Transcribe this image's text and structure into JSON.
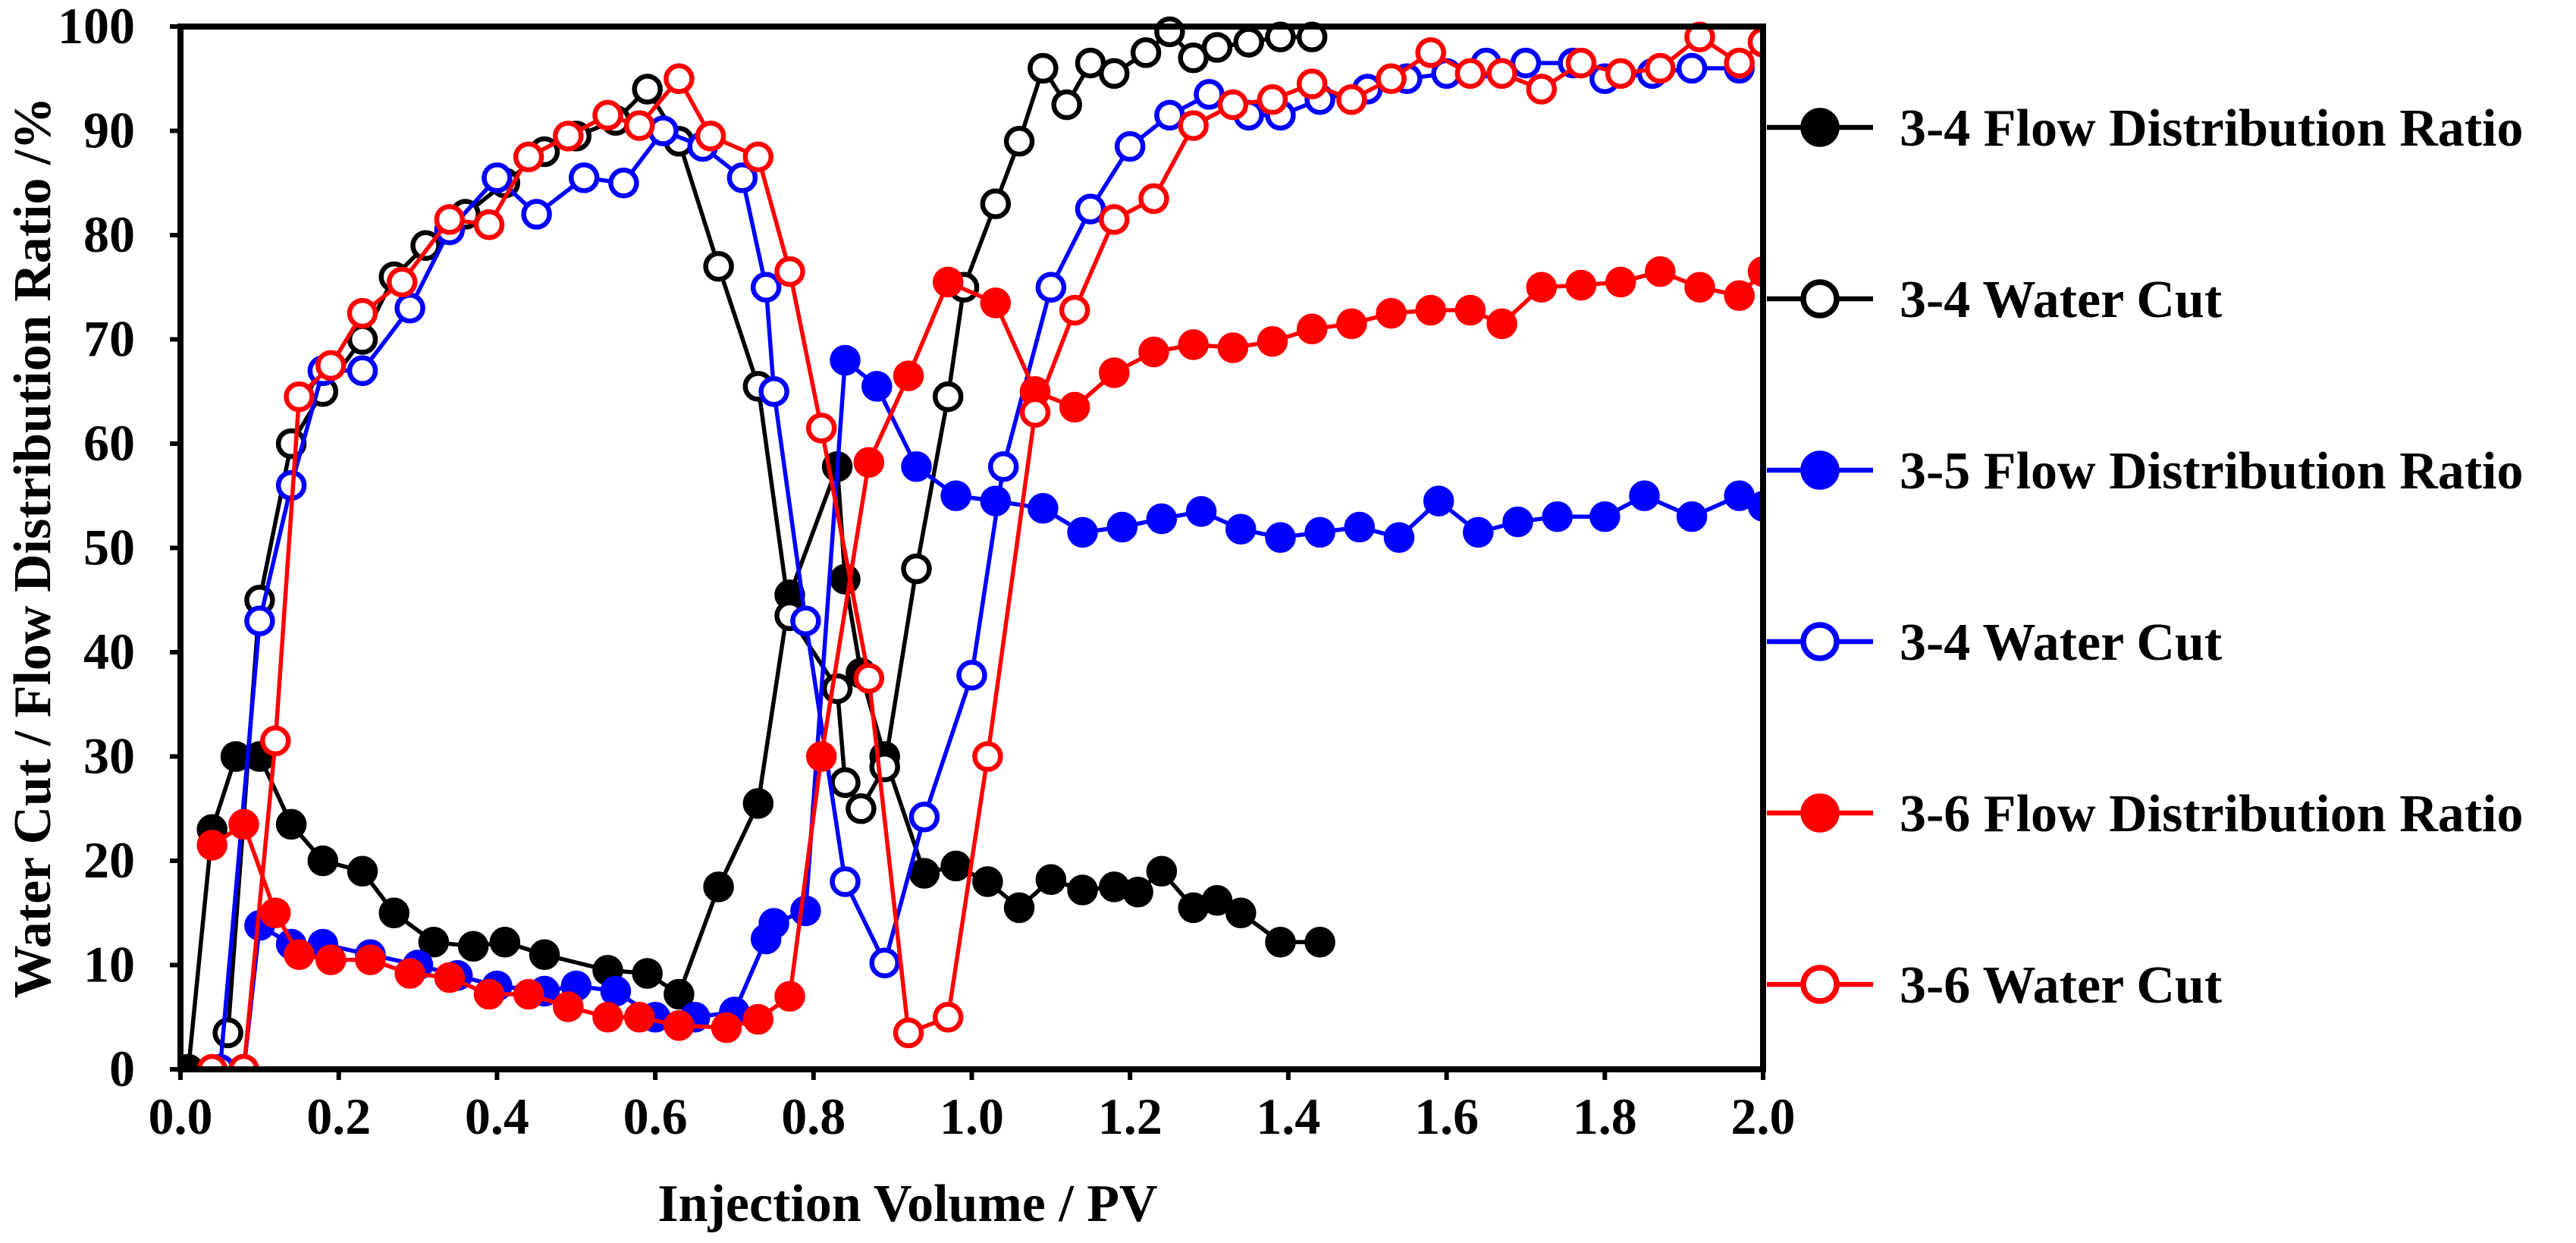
{
  "chart_data": {
    "type": "line",
    "title": "",
    "xlabel": "Injection Volume / PV",
    "ylabel": "Water Cut / Flow Distribution Ratio /%",
    "xlim": [
      0.0,
      2.0
    ],
    "ylim": [
      0,
      100
    ],
    "xticks": [
      "0.0",
      "0.2",
      "0.4",
      "0.6",
      "0.8",
      "1.0",
      "1.2",
      "1.4",
      "1.6",
      "1.8",
      "2.0"
    ],
    "yticks": [
      "0",
      "10",
      "20",
      "30",
      "40",
      "50",
      "60",
      "70",
      "80",
      "90",
      "100"
    ],
    "legend_position": "right",
    "series": [
      {
        "name": "3-4 Flow Distribution Ratio",
        "color": "#000000",
        "marker": "filled",
        "points": [
          [
            0.01,
            0
          ],
          [
            0.04,
            23
          ],
          [
            0.07,
            30
          ],
          [
            0.1,
            30
          ],
          [
            0.14,
            23.5
          ],
          [
            0.18,
            20
          ],
          [
            0.23,
            19
          ],
          [
            0.27,
            15
          ],
          [
            0.32,
            12.2
          ],
          [
            0.37,
            11.8
          ],
          [
            0.41,
            12.2
          ],
          [
            0.46,
            11
          ],
          [
            0.54,
            9.5
          ],
          [
            0.59,
            9.2
          ],
          [
            0.63,
            7.2
          ],
          [
            0.68,
            17.5
          ],
          [
            0.73,
            25.5
          ],
          [
            0.77,
            45.5
          ],
          [
            0.83,
            57.8
          ],
          [
            0.84,
            47
          ],
          [
            0.86,
            38
          ],
          [
            0.89,
            30
          ],
          [
            0.94,
            18.8
          ],
          [
            0.98,
            19.5
          ],
          [
            1.02,
            18
          ],
          [
            1.06,
            15.5
          ],
          [
            1.1,
            18.2
          ],
          [
            1.14,
            17.2
          ],
          [
            1.18,
            17.5
          ],
          [
            1.21,
            17
          ],
          [
            1.24,
            19
          ],
          [
            1.28,
            15.5
          ],
          [
            1.31,
            16.2
          ],
          [
            1.34,
            15
          ],
          [
            1.39,
            12.2
          ],
          [
            1.44,
            12.2
          ]
        ]
      },
      {
        "name": "3-4 Water Cut",
        "color": "#000000",
        "marker": "hollow",
        "points": [
          [
            0.06,
            3.5
          ],
          [
            0.1,
            45
          ],
          [
            0.14,
            60
          ],
          [
            0.18,
            65
          ],
          [
            0.23,
            70
          ],
          [
            0.27,
            76
          ],
          [
            0.31,
            79
          ],
          [
            0.36,
            82
          ],
          [
            0.41,
            85
          ],
          [
            0.46,
            88
          ],
          [
            0.5,
            89.5
          ],
          [
            0.55,
            91
          ],
          [
            0.59,
            94
          ],
          [
            0.63,
            89
          ],
          [
            0.68,
            77
          ],
          [
            0.73,
            65.5
          ],
          [
            0.77,
            43.5
          ],
          [
            0.83,
            36.5
          ],
          [
            0.84,
            27.5
          ],
          [
            0.86,
            25
          ],
          [
            0.89,
            29
          ],
          [
            0.93,
            48
          ],
          [
            0.97,
            64.5
          ],
          [
            0.99,
            75
          ],
          [
            1.03,
            83
          ],
          [
            1.06,
            89
          ],
          [
            1.09,
            96
          ],
          [
            1.12,
            92.5
          ],
          [
            1.15,
            96.5
          ],
          [
            1.18,
            95.5
          ],
          [
            1.22,
            97.5
          ],
          [
            1.25,
            99.5
          ],
          [
            1.28,
            97
          ],
          [
            1.31,
            98
          ],
          [
            1.35,
            98.5
          ],
          [
            1.39,
            99
          ],
          [
            1.43,
            99
          ]
        ]
      },
      {
        "name": "3-5 Flow Distribution Ratio",
        "color": "#0000ff",
        "marker": "filled",
        "points": [
          [
            0.05,
            0
          ],
          [
            0.08,
            0
          ],
          [
            0.1,
            13.8
          ],
          [
            0.14,
            12
          ],
          [
            0.18,
            12
          ],
          [
            0.24,
            11
          ],
          [
            0.3,
            10
          ],
          [
            0.35,
            9
          ],
          [
            0.4,
            8
          ],
          [
            0.46,
            7.5
          ],
          [
            0.5,
            8
          ],
          [
            0.55,
            7.5
          ],
          [
            0.6,
            5
          ],
          [
            0.65,
            5
          ],
          [
            0.7,
            5.5
          ],
          [
            0.74,
            12.5
          ],
          [
            0.75,
            14
          ],
          [
            0.79,
            15.2
          ],
          [
            0.84,
            68
          ],
          [
            0.88,
            65.5
          ],
          [
            0.93,
            57.8
          ],
          [
            0.98,
            55
          ],
          [
            1.03,
            54.5
          ],
          [
            1.09,
            53.8
          ],
          [
            1.14,
            51.5
          ],
          [
            1.19,
            52
          ],
          [
            1.24,
            52.8
          ],
          [
            1.29,
            53.5
          ],
          [
            1.34,
            51.8
          ],
          [
            1.39,
            51
          ],
          [
            1.44,
            51.5
          ],
          [
            1.49,
            52
          ],
          [
            1.54,
            51
          ],
          [
            1.59,
            54.5
          ],
          [
            1.64,
            51.5
          ],
          [
            1.69,
            52.5
          ],
          [
            1.74,
            53
          ],
          [
            1.8,
            53
          ],
          [
            1.85,
            55
          ],
          [
            1.91,
            53
          ],
          [
            1.97,
            55
          ],
          [
            2.0,
            54
          ]
        ]
      },
      {
        "name": "3-4 Water Cut",
        "color": "#0000ff",
        "marker": "hollow",
        "points": [
          [
            0.05,
            0
          ],
          [
            0.1,
            43
          ],
          [
            0.14,
            56
          ],
          [
            0.18,
            67
          ],
          [
            0.23,
            67
          ],
          [
            0.29,
            73
          ],
          [
            0.34,
            80.5
          ],
          [
            0.4,
            85.5
          ],
          [
            0.45,
            82
          ],
          [
            0.51,
            85.5
          ],
          [
            0.56,
            85
          ],
          [
            0.61,
            90
          ],
          [
            0.66,
            88.5
          ],
          [
            0.71,
            85.5
          ],
          [
            0.74,
            75
          ],
          [
            0.75,
            65
          ],
          [
            0.79,
            43
          ],
          [
            0.84,
            18
          ],
          [
            0.89,
            10.2
          ],
          [
            0.94,
            24.2
          ],
          [
            1.0,
            37.8
          ],
          [
            1.04,
            57.8
          ],
          [
            1.1,
            75
          ],
          [
            1.15,
            82.5
          ],
          [
            1.2,
            88.5
          ],
          [
            1.25,
            91.5
          ],
          [
            1.3,
            93.5
          ],
          [
            1.35,
            91.5
          ],
          [
            1.39,
            91.5
          ],
          [
            1.44,
            93
          ],
          [
            1.5,
            94
          ],
          [
            1.55,
            95
          ],
          [
            1.6,
            95.5
          ],
          [
            1.65,
            96.5
          ],
          [
            1.7,
            96.5
          ],
          [
            1.76,
            96.5
          ],
          [
            1.8,
            95
          ],
          [
            1.86,
            95.5
          ],
          [
            1.91,
            96
          ],
          [
            1.97,
            96
          ]
        ]
      },
      {
        "name": "3-6 Flow Distribution Ratio",
        "color": "#ff0000",
        "marker": "filled",
        "points": [
          [
            0.04,
            21.5
          ],
          [
            0.08,
            23.5
          ],
          [
            0.12,
            15
          ],
          [
            0.15,
            11
          ],
          [
            0.19,
            10.5
          ],
          [
            0.24,
            10.5
          ],
          [
            0.29,
            9.2
          ],
          [
            0.34,
            8.8
          ],
          [
            0.39,
            7.2
          ],
          [
            0.44,
            7.2
          ],
          [
            0.49,
            6
          ],
          [
            0.54,
            5
          ],
          [
            0.58,
            5
          ],
          [
            0.63,
            4.2
          ],
          [
            0.69,
            4
          ],
          [
            0.73,
            4.8
          ],
          [
            0.77,
            7
          ],
          [
            0.81,
            30
          ],
          [
            0.87,
            58.2
          ],
          [
            0.92,
            66.5
          ],
          [
            0.97,
            75.5
          ],
          [
            1.03,
            73.5
          ],
          [
            1.08,
            65
          ],
          [
            1.13,
            63.5
          ],
          [
            1.18,
            66.8
          ],
          [
            1.23,
            68.8
          ],
          [
            1.28,
            69.5
          ],
          [
            1.33,
            69.2
          ],
          [
            1.38,
            69.8
          ],
          [
            1.43,
            71
          ],
          [
            1.48,
            71.5
          ],
          [
            1.53,
            72.5
          ],
          [
            1.58,
            72.8
          ],
          [
            1.63,
            72.8
          ],
          [
            1.67,
            71.5
          ],
          [
            1.72,
            75
          ],
          [
            1.77,
            75.2
          ],
          [
            1.82,
            75.5
          ],
          [
            1.87,
            76.5
          ],
          [
            1.92,
            75
          ],
          [
            1.97,
            74.2
          ],
          [
            2.0,
            76.5
          ]
        ]
      },
      {
        "name": "3-6 Water Cut",
        "color": "#ff0000",
        "marker": "hollow",
        "points": [
          [
            0.04,
            0
          ],
          [
            0.08,
            0
          ],
          [
            0.12,
            31.5
          ],
          [
            0.15,
            64.5
          ],
          [
            0.19,
            67.5
          ],
          [
            0.23,
            72.5
          ],
          [
            0.28,
            75.5
          ],
          [
            0.34,
            81.5
          ],
          [
            0.39,
            81
          ],
          [
            0.44,
            87.5
          ],
          [
            0.49,
            89.5
          ],
          [
            0.54,
            91.5
          ],
          [
            0.58,
            90.5
          ],
          [
            0.63,
            95
          ],
          [
            0.67,
            89.5
          ],
          [
            0.73,
            87.5
          ],
          [
            0.77,
            76.5
          ],
          [
            0.81,
            61.5
          ],
          [
            0.87,
            37.5
          ],
          [
            0.92,
            3.5
          ],
          [
            0.97,
            5
          ],
          [
            1.02,
            30
          ],
          [
            1.08,
            63
          ],
          [
            1.13,
            72.8
          ],
          [
            1.18,
            81.5
          ],
          [
            1.23,
            83.5
          ],
          [
            1.28,
            90.5
          ],
          [
            1.33,
            92.5
          ],
          [
            1.38,
            93
          ],
          [
            1.43,
            94.5
          ],
          [
            1.48,
            93
          ],
          [
            1.53,
            95
          ],
          [
            1.58,
            97.5
          ],
          [
            1.63,
            95.5
          ],
          [
            1.67,
            95.5
          ],
          [
            1.72,
            94
          ],
          [
            1.77,
            96.5
          ],
          [
            1.82,
            95.5
          ],
          [
            1.87,
            96
          ],
          [
            1.92,
            99
          ],
          [
            1.97,
            96.5
          ],
          [
            2.0,
            98.5
          ]
        ]
      }
    ]
  }
}
